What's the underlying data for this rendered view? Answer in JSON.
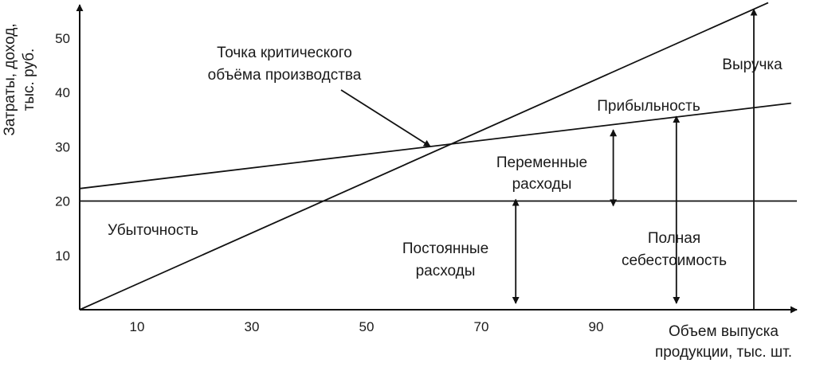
{
  "chart_data": {
    "type": "line",
    "ylabel_lines": [
      "Затраты, доход,",
      "тыс. руб."
    ],
    "xlabel_lines": [
      "Объем выпуска",
      "продукции, тыс. шт."
    ],
    "xlim": [
      0,
      125
    ],
    "ylim": [
      0,
      57
    ],
    "x_ticks": [
      10,
      30,
      50,
      70,
      90
    ],
    "y_ticks": [
      10,
      20,
      30,
      40,
      50
    ],
    "series": [
      {
        "key": "revenue",
        "points": [
          [
            0,
            0
          ],
          [
            120,
            56.5
          ]
        ]
      },
      {
        "key": "total_cost",
        "points": [
          [
            0,
            22.3
          ],
          [
            124,
            38
          ]
        ]
      },
      {
        "key": "fixed_cost",
        "points": [
          [
            0,
            20
          ],
          [
            125,
            20
          ]
        ]
      }
    ],
    "break_even": {
      "x": 62.5,
      "y": 29.3
    },
    "annotations": {
      "break_even_label": [
        "Точка критического",
        "объёма производства"
      ],
      "revenue_label": "Выручка",
      "profit_label": "Прибыльность",
      "loss_label": "Убыточность",
      "variable_cost_label": [
        "Переменные",
        "расходы"
      ],
      "fixed_cost_label": [
        "Постоянные",
        "расходы"
      ],
      "total_cost_label": [
        "Полная",
        "себестоимость"
      ]
    },
    "brackets": [
      {
        "key": "variable",
        "x": 93,
        "y_from": 20,
        "y_to": 32.8
      },
      {
        "key": "fixed",
        "x": 76,
        "y_from": 0,
        "y_to": 20
      },
      {
        "key": "total",
        "x": 104,
        "y_from": 0,
        "y_to": 35.3
      },
      {
        "key": "revenue",
        "x": 117.5,
        "y_from": 0,
        "y_to": 55
      }
    ]
  }
}
